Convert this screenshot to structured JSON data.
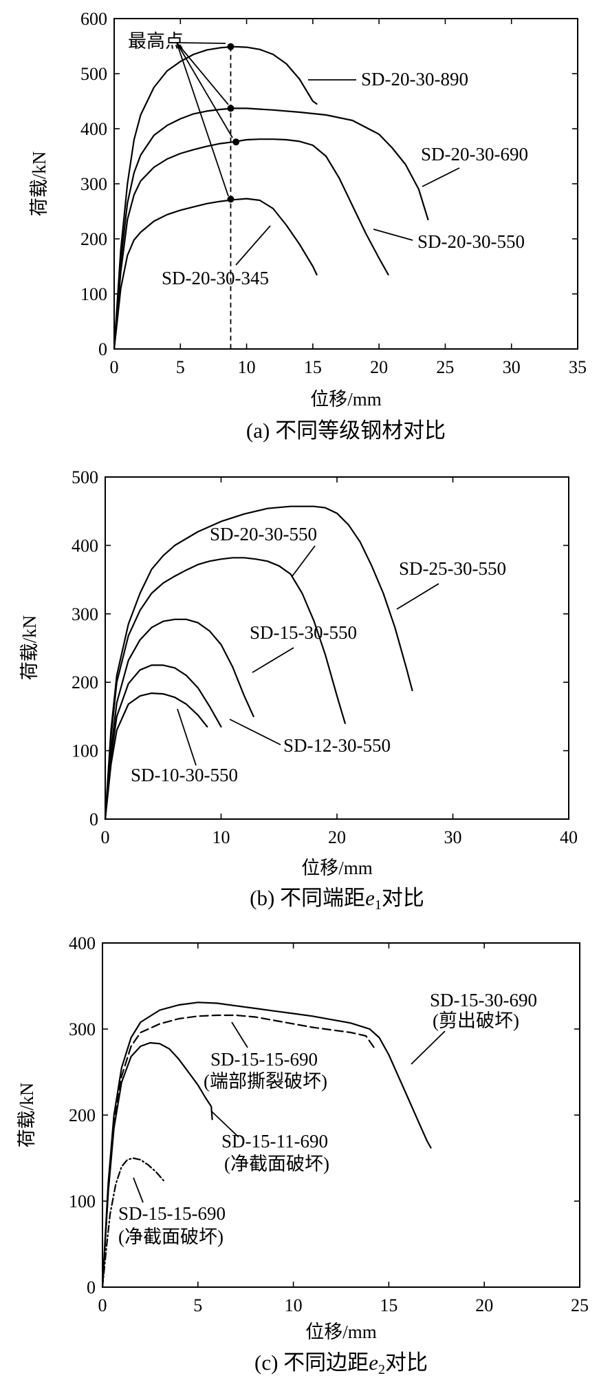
{
  "chart_data": [
    {
      "type": "line",
      "caption": "(a) 不同等级钢材对比",
      "xlabel": "位移/mm",
      "ylabel": "荷载/kN",
      "xlim": [
        0,
        35
      ],
      "ylim": [
        0,
        600
      ],
      "xticks": [
        0,
        5,
        10,
        15,
        20,
        25,
        30,
        35
      ],
      "yticks": [
        0,
        100,
        200,
        300,
        400,
        500,
        600
      ],
      "grid": false,
      "series": [
        {
          "name": "SD-20-30-890",
          "x": [
            0,
            0.5,
            1,
            1.5,
            2,
            3,
            4,
            5,
            6,
            7,
            8,
            9,
            10,
            11,
            12,
            13,
            14,
            14.5,
            15,
            15.3
          ],
          "y": [
            0,
            180,
            300,
            380,
            425,
            475,
            505,
            522,
            535,
            543,
            547,
            549,
            548,
            544,
            535,
            518,
            490,
            470,
            450,
            445
          ]
        },
        {
          "name": "SD-20-30-690",
          "x": [
            0,
            0.5,
            1,
            1.5,
            2,
            3,
            4,
            5,
            6,
            7,
            8,
            9,
            10,
            12,
            14,
            16,
            18,
            20,
            21,
            22,
            23,
            23.7
          ],
          "y": [
            0,
            160,
            265,
            320,
            352,
            388,
            406,
            418,
            427,
            432,
            435,
            437,
            437,
            434,
            430,
            425,
            415,
            390,
            365,
            335,
            290,
            235
          ]
        },
        {
          "name": "SD-20-30-550",
          "x": [
            0,
            0.5,
            1,
            1.5,
            2,
            3,
            4,
            5,
            6,
            7,
            8,
            9,
            10,
            11,
            12,
            13,
            14,
            15,
            16,
            17,
            18,
            19,
            20,
            20.7
          ],
          "y": [
            0,
            140,
            235,
            280,
            305,
            330,
            345,
            355,
            362,
            368,
            373,
            376,
            380,
            381,
            381,
            380,
            377,
            370,
            350,
            310,
            260,
            210,
            165,
            135
          ]
        },
        {
          "name": "SD-20-30-345",
          "x": [
            0,
            0.5,
            1,
            1.5,
            2,
            3,
            4,
            5,
            6,
            7,
            8,
            9,
            10,
            11,
            12,
            13,
            14,
            15,
            15.3
          ],
          "y": [
            0,
            110,
            170,
            198,
            212,
            232,
            244,
            252,
            258,
            264,
            268,
            271,
            273,
            270,
            255,
            225,
            190,
            150,
            135
          ]
        }
      ],
      "annotations": [
        {
          "text": "最高点"
        },
        {
          "text": "SD-20-30-890"
        },
        {
          "text": "SD-20-30-690"
        },
        {
          "text": "SD-20-30-550"
        },
        {
          "text": "SD-20-30-345"
        }
      ],
      "peak_points": [
        {
          "x": 8.8,
          "y": 549
        },
        {
          "x": 8.8,
          "y": 437
        },
        {
          "x": 9.2,
          "y": 376
        },
        {
          "x": 8.8,
          "y": 272
        }
      ],
      "reference_x": 8.8
    },
    {
      "type": "line",
      "caption_prefix": "(b) 不同端距",
      "caption_var": "e",
      "caption_sub": "1",
      "caption_suffix": "对比",
      "xlabel": "位移/mm",
      "ylabel": "荷载/kN",
      "xlim": [
        0,
        40
      ],
      "ylim": [
        0,
        500
      ],
      "xticks": [
        0,
        10,
        20,
        30,
        40
      ],
      "yticks": [
        0,
        100,
        200,
        300,
        400,
        500
      ],
      "grid": false,
      "series": [
        {
          "name": "SD-25-30-550",
          "x": [
            0,
            0.5,
            1,
            2,
            3,
            4,
            5,
            6,
            8,
            10,
            12,
            14,
            16,
            18,
            19,
            20,
            21,
            22,
            23,
            24,
            25,
            26,
            26.5
          ],
          "y": [
            0,
            130,
            210,
            285,
            330,
            365,
            385,
            400,
            420,
            435,
            446,
            454,
            457,
            457,
            455,
            447,
            430,
            405,
            370,
            330,
            280,
            220,
            188
          ]
        },
        {
          "name": "SD-20-30-550",
          "x": [
            0,
            0.5,
            1,
            2,
            3,
            4,
            5,
            6,
            7,
            8,
            9,
            10,
            11,
            12,
            13,
            14,
            15,
            16,
            17,
            18,
            19,
            20,
            20.7
          ],
          "y": [
            0,
            120,
            200,
            268,
            305,
            330,
            345,
            355,
            364,
            372,
            377,
            380,
            382,
            382,
            380,
            377,
            370,
            358,
            330,
            290,
            240,
            180,
            140
          ]
        },
        {
          "name": "SD-15-30-550",
          "x": [
            0,
            0.5,
            1,
            2,
            3,
            4,
            5,
            6,
            7,
            8,
            9,
            10,
            11,
            12,
            12.8
          ],
          "y": [
            0,
            100,
            170,
            232,
            262,
            280,
            289,
            292,
            292,
            287,
            275,
            255,
            222,
            180,
            150
          ]
        },
        {
          "name": "SD-12-30-550",
          "x": [
            0,
            0.5,
            1,
            2,
            3,
            4,
            5,
            6,
            7,
            8,
            9,
            10
          ],
          "y": [
            0,
            90,
            150,
            198,
            218,
            225,
            225,
            221,
            210,
            192,
            165,
            135
          ]
        },
        {
          "name": "SD-10-30-550",
          "x": [
            0,
            0.5,
            1,
            2,
            3,
            4,
            5,
            6,
            7,
            8,
            8.8
          ],
          "y": [
            0,
            80,
            130,
            168,
            180,
            184,
            183,
            178,
            168,
            152,
            135
          ]
        }
      ],
      "annotations": [
        {
          "text": "SD-20-30-550"
        },
        {
          "text": "SD-25-30-550"
        },
        {
          "text": "SD-15-30-550"
        },
        {
          "text": "SD-12-30-550"
        },
        {
          "text": "SD-10-30-550"
        }
      ]
    },
    {
      "type": "line",
      "caption_prefix": "(c) 不同边距",
      "caption_var": "e",
      "caption_sub": "2",
      "caption_suffix": "对比",
      "xlabel": "位移/mm",
      "ylabel": "荷载/kN",
      "xlim": [
        0,
        25
      ],
      "ylim": [
        0,
        400
      ],
      "xticks": [
        0,
        5,
        10,
        15,
        20,
        25
      ],
      "yticks": [
        0,
        100,
        200,
        300,
        400
      ],
      "grid": false,
      "series": [
        {
          "name": "SD-15-30-690",
          "style": "solid",
          "x": [
            0,
            0.3,
            0.6,
            1,
            1.5,
            2,
            3,
            4,
            5,
            6,
            7,
            8,
            9,
            10,
            11,
            12,
            13,
            14,
            14.5,
            15,
            15.5,
            16,
            16.5,
            17,
            17.2
          ],
          "y": [
            0,
            120,
            200,
            255,
            290,
            308,
            322,
            328,
            331,
            330,
            327,
            324,
            321,
            318,
            315,
            311,
            307,
            300,
            290,
            270,
            245,
            220,
            195,
            170,
            162
          ]
        },
        {
          "name": "SD-15-15-690",
          "style": "dashed",
          "x": [
            0,
            0.3,
            0.6,
            1,
            1.5,
            2,
            3,
            4,
            5,
            6,
            7,
            8,
            9,
            10,
            11,
            12,
            13,
            13.8,
            14.3
          ],
          "y": [
            0,
            110,
            190,
            245,
            280,
            296,
            306,
            312,
            315,
            316,
            316,
            314,
            310,
            306,
            302,
            299,
            296,
            292,
            276
          ]
        },
        {
          "name": "SD-15-11-690",
          "style": "solid",
          "x": [
            0,
            0.3,
            0.6,
            1,
            1.5,
            2,
            2.5,
            3,
            3.5,
            4,
            4.5,
            5,
            5.4,
            5.7,
            5.75
          ],
          "y": [
            0,
            110,
            185,
            238,
            268,
            280,
            284,
            283,
            277,
            265,
            250,
            235,
            220,
            210,
            195
          ]
        },
        {
          "name": "SD-15-15-690",
          "style": "dashdot",
          "x": [
            0,
            0.2,
            0.4,
            0.7,
            1,
            1.3,
            1.6,
            2,
            2.4,
            2.8,
            3.2
          ],
          "y": [
            0,
            45,
            85,
            120,
            140,
            148,
            150,
            148,
            142,
            134,
            124
          ]
        }
      ],
      "annotations": [
        {
          "text": "SD-15-30-690",
          "note": "(剪出破坏)"
        },
        {
          "text": "SD-15-15-690",
          "note": "(端部撕裂破坏)"
        },
        {
          "text": "SD-15-11-690",
          "note": "(净截面破坏)"
        },
        {
          "text": "SD-15-15-690",
          "note": "(净截面破坏)"
        }
      ]
    }
  ]
}
